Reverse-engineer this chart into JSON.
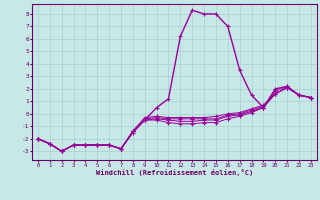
{
  "xlabel": "Windchill (Refroidissement éolien,°C)",
  "bg_color": "#c8e8e8",
  "line_color": "#990099",
  "grid_color": "#aad4d4",
  "axis_color": "#660066",
  "text_color": "#660066",
  "x_ticks": [
    0,
    1,
    2,
    3,
    4,
    5,
    6,
    7,
    8,
    9,
    10,
    11,
    12,
    13,
    14,
    15,
    16,
    17,
    18,
    19,
    20,
    21,
    22,
    23
  ],
  "y_ticks": [
    -3,
    -2,
    -1,
    0,
    1,
    2,
    3,
    4,
    5,
    6,
    7,
    8
  ],
  "ylim": [
    -3.7,
    8.8
  ],
  "xlim": [
    -0.5,
    23.5
  ],
  "series": [
    [
      0,
      1,
      2,
      3,
      4,
      5,
      6,
      7,
      8,
      9,
      10,
      11,
      12,
      13,
      14,
      15,
      16,
      17,
      18,
      19,
      20,
      21,
      22,
      23
    ],
    [
      -2,
      -2.4,
      -3,
      -2.5,
      -2.5,
      -2.5,
      -2.5,
      -2.8,
      -1.5,
      -0.5,
      0.5,
      1.2,
      6.2,
      8.3,
      8.0,
      8.0,
      7.0,
      3.5,
      1.5,
      0.5,
      2.0,
      2.2,
      1.5,
      1.3
    ],
    [
      -2,
      -2.4,
      -3,
      -2.5,
      -2.5,
      -2.5,
      -2.5,
      -2.8,
      -1.4,
      -0.5,
      -0.5,
      -0.7,
      -0.8,
      -0.8,
      -0.7,
      -0.7,
      -0.4,
      -0.2,
      0.1,
      0.5,
      1.8,
      2.2,
      1.5,
      1.3
    ],
    [
      -2,
      -2.4,
      -3,
      -2.5,
      -2.5,
      -2.5,
      -2.5,
      -2.8,
      -1.4,
      -0.5,
      -0.4,
      -0.5,
      -0.6,
      -0.6,
      -0.5,
      -0.5,
      -0.2,
      -0.1,
      0.2,
      0.5,
      1.6,
      2.1,
      1.5,
      1.3
    ],
    [
      -2,
      -2.4,
      -3,
      -2.5,
      -2.5,
      -2.5,
      -2.5,
      -2.8,
      -1.4,
      -0.4,
      -0.3,
      -0.4,
      -0.4,
      -0.4,
      -0.4,
      -0.4,
      -0.1,
      0.0,
      0.3,
      0.6,
      1.6,
      2.1,
      1.5,
      1.3
    ],
    [
      -2,
      -2.4,
      -3,
      -2.5,
      -2.5,
      -2.5,
      -2.5,
      -2.8,
      -1.4,
      -0.3,
      -0.2,
      -0.3,
      -0.3,
      -0.3,
      -0.3,
      -0.2,
      0.0,
      0.1,
      0.4,
      0.7,
      1.6,
      2.1,
      1.5,
      1.3
    ]
  ]
}
